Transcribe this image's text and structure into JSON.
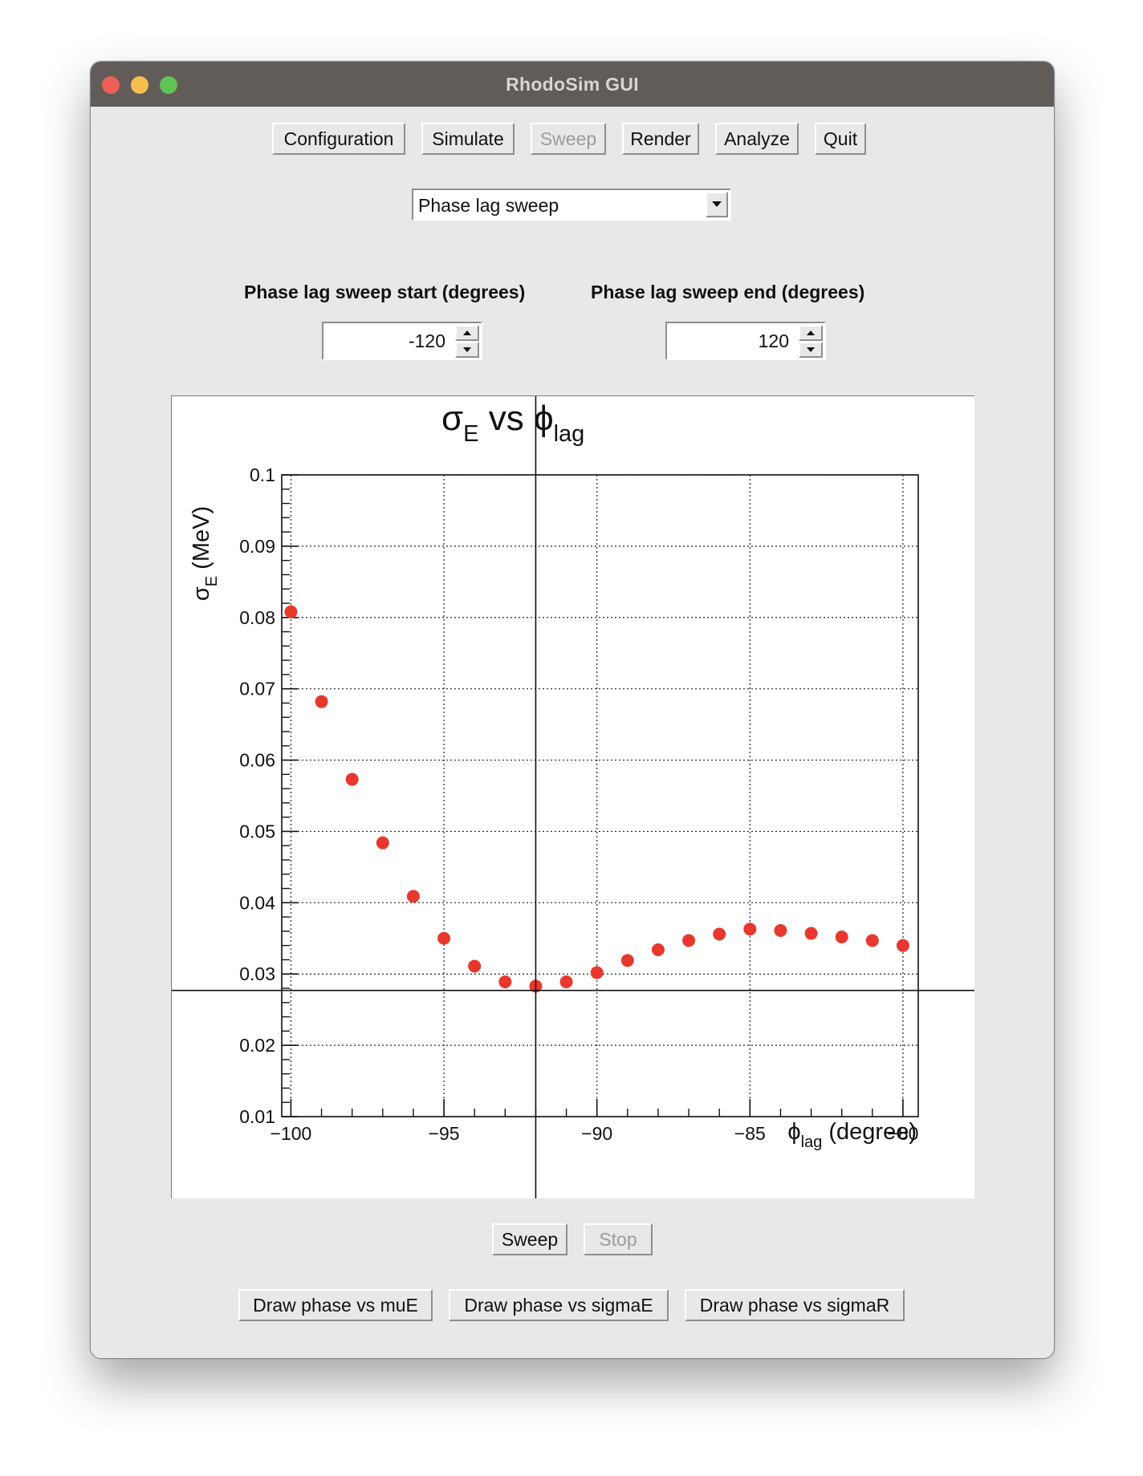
{
  "window": {
    "title": "RhodoSim GUI"
  },
  "toolbar": {
    "configuration": "Configuration",
    "simulate": "Simulate",
    "sweep": "Sweep",
    "render": "Render",
    "analyze": "Analyze",
    "quit": "Quit"
  },
  "sweep_mode": {
    "selected": "Phase lag sweep"
  },
  "start": {
    "label": "Phase lag sweep start (degrees)",
    "value": "-120"
  },
  "end": {
    "label": "Phase lag sweep end (degrees)",
    "value": "120"
  },
  "controls": {
    "sweep": "Sweep",
    "stop": "Stop"
  },
  "draw_buttons": {
    "mu_e": "Draw phase vs muE",
    "sigma_e": "Draw phase vs sigmaE",
    "sigma_r": "Draw phase vs sigmaR"
  },
  "chart_data": {
    "type": "scatter",
    "title": "σE vs ϕlag",
    "title_parts": {
      "main": "σ",
      "main_sub": "E",
      "vs": "vs",
      "phi": "ϕ",
      "phi_sub": "lag"
    },
    "xlabel": "ϕlag (degree)",
    "xlabel_parts": {
      "phi": "ϕ",
      "sub": "lag",
      "rest": "(degree)"
    },
    "ylabel": "σE (MeV)",
    "ylabel_parts": {
      "sigma": "σ",
      "sub": "E",
      "rest": "(MeV)"
    },
    "xlim": [
      -100.3,
      -79.5
    ],
    "ylim": [
      0.01,
      0.1
    ],
    "x_ticks": [
      -100,
      -95,
      -90,
      -85,
      -80
    ],
    "x_tick_labels": [
      "−100",
      "−95",
      "−90",
      "−85",
      "−80"
    ],
    "y_ticks": [
      0.01,
      0.02,
      0.03,
      0.04,
      0.05,
      0.06,
      0.07,
      0.08,
      0.09,
      0.1
    ],
    "y_tick_labels": [
      "0.01",
      "0.02",
      "0.03",
      "0.04",
      "0.05",
      "0.06",
      "0.07",
      "0.08",
      "0.09",
      "0.1"
    ],
    "grid": true,
    "marker_color": "#e8382e",
    "crosshair": {
      "x": -92,
      "y": 0.0277
    },
    "x": [
      -100,
      -99,
      -98,
      -97,
      -96,
      -95,
      -94,
      -93,
      -92,
      -91,
      -90,
      -89,
      -88,
      -87,
      -86,
      -85,
      -84,
      -83,
      -82,
      -81,
      -80
    ],
    "y": [
      0.0808,
      0.0682,
      0.0573,
      0.0484,
      0.0409,
      0.035,
      0.0311,
      0.0289,
      0.0283,
      0.0289,
      0.0302,
      0.0319,
      0.0334,
      0.0347,
      0.0356,
      0.0363,
      0.0361,
      0.0357,
      0.0352,
      0.0347,
      0.034
    ]
  }
}
